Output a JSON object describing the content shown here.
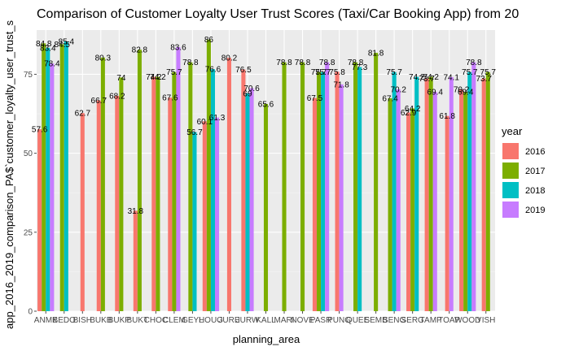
{
  "chart_data": {
    "type": "bar",
    "title": "Comparison of Customer Loyalty User Trust Scores (Taxi/Car Booking App) from 20",
    "xlabel": "planning_area",
    "ylabel": "app_2016_2019_comparison_PA$`customer_loyalty_user_trust_s",
    "ylim": [
      0,
      89
    ],
    "yticks": [
      0,
      25,
      50,
      75
    ],
    "grid": true,
    "legend_position": "right",
    "legend_title": "year",
    "categories": [
      "ANMK",
      "BEDO",
      "BISH",
      "BUKB",
      "BUKP",
      "BUKT",
      "CHOC",
      "CLEM",
      "GEYL",
      "HOUG",
      "JURE",
      "JURW",
      "KALL",
      "MARI",
      "NOVE",
      "PASR",
      "PUNG",
      "QUEE",
      "SEMB",
      "SENG",
      "SERG",
      "TAMP",
      "TOAP",
      "WOOD",
      "YISH"
    ],
    "series": [
      {
        "name": "2016",
        "color": "#F8766D",
        "values": [
          57.6,
          null,
          62.7,
          66.7,
          68.2,
          31.8,
          74.2,
          67.6,
          null,
          60.1,
          80.2,
          76.5,
          null,
          null,
          null,
          67.5,
          75.8,
          null,
          null,
          null,
          62.9,
          73.7,
          61.8,
          70.2,
          73.7
        ]
      },
      {
        "name": "2017",
        "color": "#7CAE00",
        "values": [
          84.8,
          84.5,
          null,
          80.3,
          74,
          82.8,
          74.2,
          75.7,
          78.8,
          86,
          null,
          null,
          65.6,
          78.8,
          78.8,
          75.7,
          null,
          78.8,
          81.8,
          67.4,
          64.2,
          74.2,
          null,
          69.4,
          75.7
        ]
      },
      {
        "name": "2018",
        "color": "#00BFC4",
        "values": [
          83.4,
          85.4,
          null,
          null,
          null,
          null,
          null,
          null,
          56.7,
          76.6,
          null,
          69,
          null,
          null,
          null,
          75.7,
          null,
          77.3,
          null,
          75.7,
          74.2,
          null,
          null,
          75.7,
          null
        ]
      },
      {
        "name": "2019",
        "color": "#C77CFF",
        "values": [
          78.4,
          null,
          null,
          null,
          null,
          null,
          null,
          83.6,
          null,
          61.3,
          null,
          70.6,
          null,
          null,
          null,
          78.8,
          71.8,
          null,
          null,
          70.2,
          null,
          69.4,
          74.1,
          78.8,
          null
        ]
      }
    ]
  }
}
